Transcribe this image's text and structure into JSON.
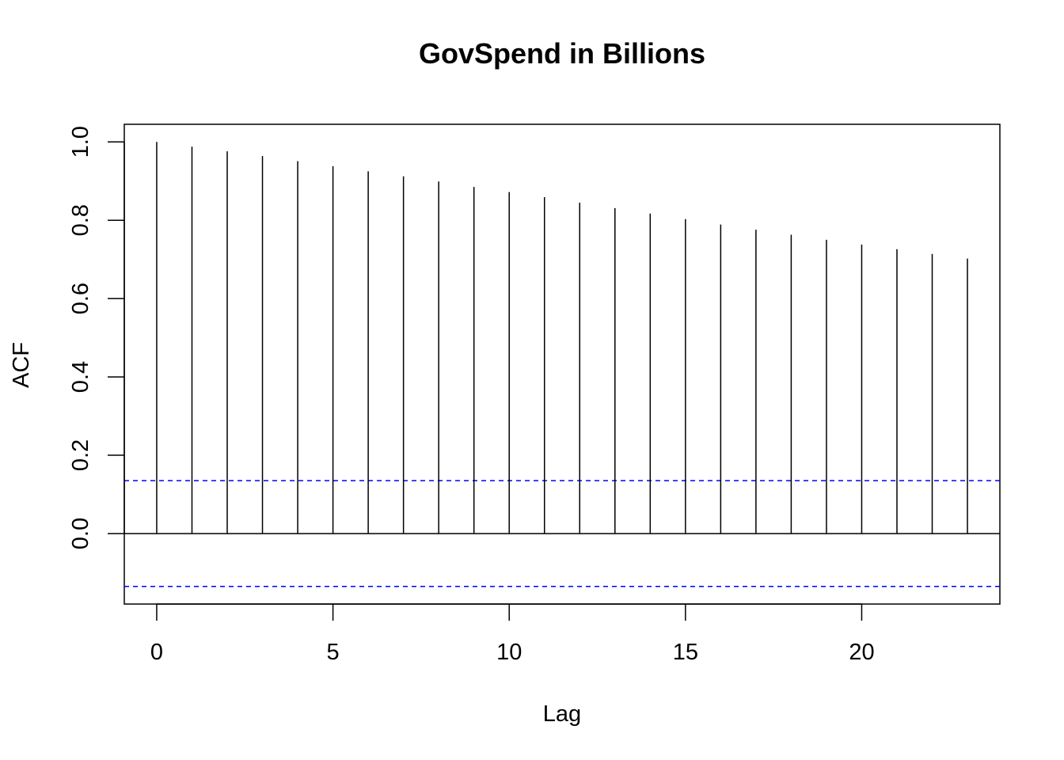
{
  "chart_data": {
    "type": "bar",
    "title": "GovSpend in Billions",
    "xlabel": "Lag",
    "ylabel": "ACF",
    "x": [
      0,
      1,
      2,
      3,
      4,
      5,
      6,
      7,
      8,
      9,
      10,
      11,
      12,
      13,
      14,
      15,
      16,
      17,
      18,
      19,
      20,
      21,
      22,
      23
    ],
    "values": [
      1.0,
      0.988,
      0.976,
      0.964,
      0.951,
      0.938,
      0.925,
      0.912,
      0.899,
      0.885,
      0.872,
      0.859,
      0.845,
      0.831,
      0.817,
      0.803,
      0.789,
      0.776,
      0.763,
      0.75,
      0.738,
      0.726,
      0.714,
      0.702
    ],
    "confidence_bounds": [
      0.135,
      -0.135
    ],
    "confidence_line_color": "#0000ff",
    "xlim": [
      -0.92,
      23.92
    ],
    "ylim": [
      -0.18,
      1.045
    ],
    "x_ticks": [
      0,
      5,
      10,
      15,
      20
    ],
    "x_tick_labels": [
      "0",
      "5",
      "10",
      "15",
      "20"
    ],
    "y_ticks": [
      0.0,
      0.2,
      0.4,
      0.6,
      0.8,
      1.0
    ],
    "y_tick_labels": [
      "0.0",
      "0.2",
      "0.4",
      "0.6",
      "0.8",
      "1.0"
    ],
    "grid": false,
    "bar_color": "#000000"
  }
}
